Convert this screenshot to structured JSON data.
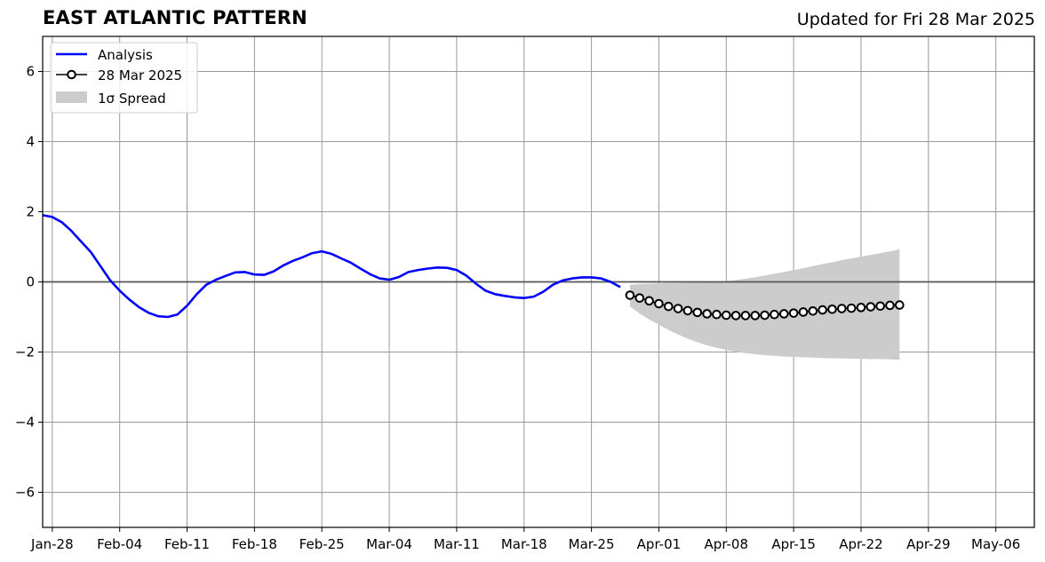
{
  "header": {
    "title": "EAST ATLANTIC PATTERN",
    "updated": "Updated for Fri 28 Mar 2025"
  },
  "chart_data": {
    "type": "line",
    "title": "EAST ATLANTIC PATTERN",
    "subtitle": "Updated for Fri 28 Mar 2025",
    "xlabel": "",
    "ylabel": "",
    "ylim": [
      -7,
      7
    ],
    "xlim": [
      "2025-01-27",
      "2025-05-10"
    ],
    "grid": true,
    "legend_position": "top-left",
    "y_ticks": [
      -6,
      -4,
      -2,
      0,
      2,
      4,
      6
    ],
    "y_tick_labels": [
      "−6",
      "−4",
      "−2",
      "0",
      "2",
      "4",
      "6"
    ],
    "x_ticks": [
      "2025-01-28",
      "2025-02-04",
      "2025-02-11",
      "2025-02-18",
      "2025-02-25",
      "2025-03-04",
      "2025-03-11",
      "2025-03-18",
      "2025-03-25",
      "2025-04-01",
      "2025-04-08",
      "2025-04-15",
      "2025-04-22",
      "2025-04-29",
      "2025-05-06"
    ],
    "x_tick_labels": [
      "Jan-28",
      "Feb-04",
      "Feb-11",
      "Feb-18",
      "Feb-25",
      "Mar-04",
      "Mar-11",
      "Mar-18",
      "Mar-25",
      "Apr-01",
      "Apr-08",
      "Apr-15",
      "Apr-22",
      "Apr-29",
      "May-06"
    ],
    "colors": {
      "analysis": "#0000ff",
      "forecast_line": "#000000",
      "forecast_marker_fill": "#ffffff",
      "spread": "#cccccc",
      "grid": "#999999",
      "zero_line": "#555555"
    },
    "legend": {
      "analysis_label": "Analysis",
      "forecast_label": "28 Mar 2025",
      "spread_label": "1σ Spread"
    },
    "series": [
      {
        "name": "Analysis",
        "kind": "line",
        "x": [
          "2025-01-27",
          "2025-01-28",
          "2025-01-29",
          "2025-01-30",
          "2025-01-31",
          "2025-02-01",
          "2025-02-02",
          "2025-02-03",
          "2025-02-04",
          "2025-02-05",
          "2025-02-06",
          "2025-02-07",
          "2025-02-08",
          "2025-02-09",
          "2025-02-10",
          "2025-02-11",
          "2025-02-12",
          "2025-02-13",
          "2025-02-14",
          "2025-02-15",
          "2025-02-16",
          "2025-02-17",
          "2025-02-18",
          "2025-02-19",
          "2025-02-20",
          "2025-02-21",
          "2025-02-22",
          "2025-02-23",
          "2025-02-24",
          "2025-02-25",
          "2025-02-26",
          "2025-02-27",
          "2025-02-28",
          "2025-03-01",
          "2025-03-02",
          "2025-03-03",
          "2025-03-04",
          "2025-03-05",
          "2025-03-06",
          "2025-03-07",
          "2025-03-08",
          "2025-03-09",
          "2025-03-10",
          "2025-03-11",
          "2025-03-12",
          "2025-03-13",
          "2025-03-14",
          "2025-03-15",
          "2025-03-16",
          "2025-03-17",
          "2025-03-18",
          "2025-03-19",
          "2025-03-20",
          "2025-03-21",
          "2025-03-22",
          "2025-03-23",
          "2025-03-24",
          "2025-03-25",
          "2025-03-26",
          "2025-03-27",
          "2025-03-28"
        ],
        "values": [
          1.9,
          1.85,
          1.7,
          1.45,
          1.15,
          0.85,
          0.45,
          0.05,
          -0.25,
          -0.5,
          -0.72,
          -0.88,
          -0.98,
          -1.0,
          -0.93,
          -0.68,
          -0.35,
          -0.08,
          0.06,
          0.17,
          0.27,
          0.28,
          0.21,
          0.2,
          0.3,
          0.47,
          0.6,
          0.7,
          0.82,
          0.87,
          0.8,
          0.67,
          0.55,
          0.38,
          0.22,
          0.1,
          0.06,
          0.14,
          0.28,
          0.34,
          0.38,
          0.41,
          0.4,
          0.34,
          0.18,
          -0.05,
          -0.25,
          -0.35,
          -0.4,
          -0.44,
          -0.46,
          -0.42,
          -0.28,
          -0.08,
          0.04,
          0.1,
          0.13,
          0.13,
          0.1,
          0.0,
          -0.15
        ]
      },
      {
        "name": "28 Mar 2025",
        "kind": "line-markers",
        "x": [
          "2025-03-29",
          "2025-03-30",
          "2025-03-31",
          "2025-04-01",
          "2025-04-02",
          "2025-04-03",
          "2025-04-04",
          "2025-04-05",
          "2025-04-06",
          "2025-04-07",
          "2025-04-08",
          "2025-04-09",
          "2025-04-10",
          "2025-04-11",
          "2025-04-12",
          "2025-04-13",
          "2025-04-14",
          "2025-04-15",
          "2025-04-16",
          "2025-04-17",
          "2025-04-18",
          "2025-04-19",
          "2025-04-20",
          "2025-04-21",
          "2025-04-22",
          "2025-04-23",
          "2025-04-24",
          "2025-04-25",
          "2025-04-26"
        ],
        "values": [
          -0.38,
          -0.46,
          -0.54,
          -0.62,
          -0.7,
          -0.76,
          -0.82,
          -0.87,
          -0.91,
          -0.93,
          -0.95,
          -0.96,
          -0.96,
          -0.96,
          -0.95,
          -0.93,
          -0.91,
          -0.89,
          -0.86,
          -0.83,
          -0.8,
          -0.78,
          -0.76,
          -0.75,
          -0.73,
          -0.71,
          -0.69,
          -0.67,
          -0.66
        ]
      },
      {
        "name": "1σ Spread",
        "kind": "band",
        "x": [
          "2025-03-29",
          "2025-03-30",
          "2025-03-31",
          "2025-04-01",
          "2025-04-02",
          "2025-04-03",
          "2025-04-04",
          "2025-04-05",
          "2025-04-06",
          "2025-04-07",
          "2025-04-08",
          "2025-04-09",
          "2025-04-10",
          "2025-04-11",
          "2025-04-12",
          "2025-04-13",
          "2025-04-14",
          "2025-04-15",
          "2025-04-16",
          "2025-04-17",
          "2025-04-18",
          "2025-04-19",
          "2025-04-20",
          "2025-04-21",
          "2025-04-22",
          "2025-04-23",
          "2025-04-24",
          "2025-04-25",
          "2025-04-26"
        ],
        "lower": [
          -0.7,
          -0.9,
          -1.07,
          -1.22,
          -1.37,
          -1.5,
          -1.62,
          -1.72,
          -1.81,
          -1.88,
          -1.94,
          -1.99,
          -2.03,
          -2.06,
          -2.09,
          -2.11,
          -2.13,
          -2.14,
          -2.15,
          -2.16,
          -2.17,
          -2.18,
          -2.18,
          -2.19,
          -2.19,
          -2.2,
          -2.2,
          -2.21,
          -2.22
        ],
        "upper": [
          -0.08,
          -0.06,
          -0.05,
          -0.04,
          -0.03,
          -0.03,
          -0.02,
          -0.02,
          -0.01,
          0.0,
          0.02,
          0.05,
          0.09,
          0.13,
          0.18,
          0.23,
          0.28,
          0.34,
          0.39,
          0.45,
          0.51,
          0.56,
          0.62,
          0.67,
          0.72,
          0.77,
          0.82,
          0.87,
          0.93
        ]
      }
    ]
  }
}
